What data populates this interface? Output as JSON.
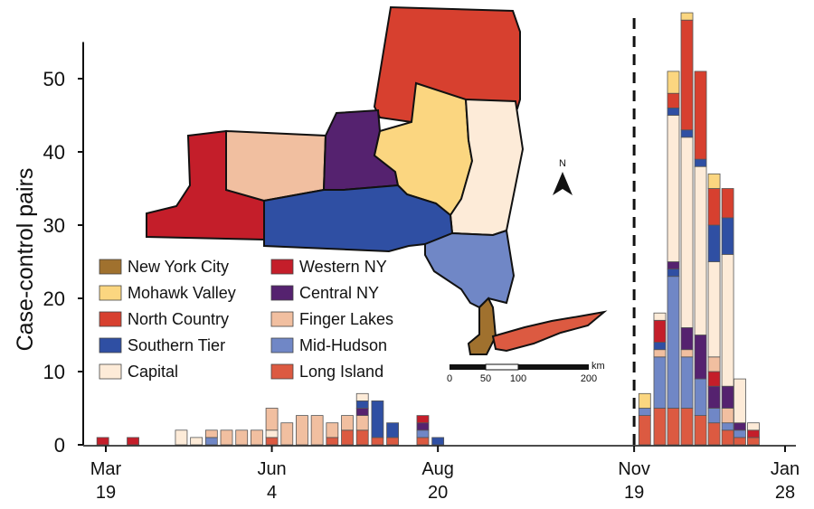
{
  "colors": {
    "new_york_city": "#A0712E",
    "western_ny": "#C41E2A",
    "mohawk_valley": "#FBD680",
    "central_ny": "#55226F",
    "north_country": "#D7402F",
    "finger_lakes": "#F1BFA0",
    "southern_tier": "#2F4FA3",
    "mid_hudson": "#7087C6",
    "capital": "#FDEBD8",
    "long_island": "#DC5A41"
  },
  "chart_data": {
    "type": "bar",
    "stacked": true,
    "ylabel": "Case-control pairs",
    "xlabel": "",
    "ylim": [
      0,
      55
    ],
    "yticks": [
      "0",
      "10",
      "20",
      "30",
      "40",
      "50"
    ],
    "ytick_values": [
      0,
      10,
      20,
      30,
      40,
      50
    ],
    "xtick_labels": [
      {
        "week": 0,
        "line1": "Mar",
        "line2": "19"
      },
      {
        "week": 11,
        "line1": "Jun",
        "line2": "4"
      },
      {
        "week": 22,
        "line1": "Aug",
        "line2": "20"
      },
      {
        "week": 35,
        "line1": "Nov",
        "line2": "19"
      },
      {
        "week": 45,
        "line1": "Jan",
        "line2": "28"
      }
    ],
    "week_range": [
      -0.5,
      45.5
    ],
    "reference_line_week": 35,
    "series_order": [
      "long_island",
      "mid_hudson",
      "capital",
      "finger_lakes",
      "western_ny",
      "central_ny",
      "southern_tier",
      "north_country",
      "mohawk_valley",
      "new_york_city"
    ],
    "bars": [
      {
        "week": -0.2,
        "values": {
          "western_ny": 1
        }
      },
      {
        "week": 1.8,
        "values": {
          "western_ny": 1
        }
      },
      {
        "week": 5,
        "values": {
          "capital": 2
        }
      },
      {
        "week": 6,
        "values": {
          "capital": 1
        }
      },
      {
        "week": 7,
        "values": {
          "mid_hudson": 1,
          "finger_lakes": 1
        }
      },
      {
        "week": 8,
        "values": {
          "finger_lakes": 2
        }
      },
      {
        "week": 9,
        "values": {
          "finger_lakes": 2
        }
      },
      {
        "week": 10,
        "values": {
          "finger_lakes": 2
        }
      },
      {
        "week": 11,
        "values": {
          "long_island": 1,
          "capital": 1,
          "finger_lakes": 3
        }
      },
      {
        "week": 12,
        "values": {
          "finger_lakes": 3
        }
      },
      {
        "week": 13,
        "values": {
          "finger_lakes": 4
        }
      },
      {
        "week": 14,
        "values": {
          "finger_lakes": 4
        }
      },
      {
        "week": 15,
        "values": {
          "long_island": 1,
          "finger_lakes": 2
        }
      },
      {
        "week": 16,
        "values": {
          "long_island": 2,
          "finger_lakes": 2
        }
      },
      {
        "week": 17,
        "values": {
          "long_island": 2,
          "finger_lakes": 2,
          "central_ny": 1,
          "southern_tier": 1,
          "capital": 1
        }
      },
      {
        "week": 18,
        "values": {
          "long_island": 1,
          "southern_tier": 5
        }
      },
      {
        "week": 19,
        "values": {
          "long_island": 1,
          "southern_tier": 2
        }
      },
      {
        "week": 21,
        "values": {
          "long_island": 1,
          "mid_hudson": 1,
          "central_ny": 1,
          "western_ny": 1
        }
      },
      {
        "week": 22,
        "values": {
          "southern_tier": 1
        }
      },
      {
        "week": 35.7,
        "values": {
          "long_island": 4,
          "mid_hudson": 1,
          "mohawk_valley": 2
        }
      },
      {
        "week": 36.7,
        "values": {
          "long_island": 5,
          "mid_hudson": 7,
          "finger_lakes": 1,
          "southern_tier": 1,
          "western_ny": 3,
          "capital": 1
        }
      },
      {
        "week": 37.6,
        "values": {
          "long_island": 5,
          "mid_hudson": 18,
          "southern_tier": 1,
          "central_ny": 1,
          "capital": 20,
          "southern_tier_2": 1,
          "north_country": 2,
          "mohawk_valley": 3
        }
      },
      {
        "week": 38.5,
        "values": {
          "long_island": 5,
          "mid_hudson": 7,
          "finger_lakes": 1,
          "central_ny": 3,
          "capital": 26,
          "southern_tier": 1,
          "north_country": 15,
          "mohawk_valley": 1
        }
      },
      {
        "week": 39.4,
        "values": {
          "long_island": 4,
          "mid_hudson": 5,
          "central_ny": 6,
          "capital": 23,
          "southern_tier": 1,
          "north_country": 12
        }
      },
      {
        "week": 40.3,
        "values": {
          "long_island": 3,
          "mid_hudson": 2,
          "central_ny": 3,
          "western_ny": 2,
          "finger_lakes": 2,
          "capital": 13,
          "southern_tier": 5,
          "north_country": 5,
          "mohawk_valley": 2
        }
      },
      {
        "week": 41.2,
        "values": {
          "long_island": 2,
          "mid_hudson": 1,
          "finger_lakes": 2,
          "central_ny": 3,
          "capital": 18,
          "southern_tier": 5,
          "north_country": 4
        }
      },
      {
        "week": 42,
        "values": {
          "long_island": 1,
          "mid_hudson": 1,
          "central_ny": 1,
          "capital": 6
        }
      },
      {
        "week": 42.9,
        "values": {
          "long_island": 1,
          "western_ny": 1,
          "capital": 1
        }
      }
    ],
    "legend": [
      {
        "key": "new_york_city",
        "label": "New York City"
      },
      {
        "key": "western_ny",
        "label": "Western NY"
      },
      {
        "key": "mohawk_valley",
        "label": "Mohawk Valley"
      },
      {
        "key": "central_ny",
        "label": "Central NY"
      },
      {
        "key": "north_country",
        "label": "North Country"
      },
      {
        "key": "finger_lakes",
        "label": "Finger Lakes"
      },
      {
        "key": "southern_tier",
        "label": "Southern Tier"
      },
      {
        "key": "mid_hudson",
        "label": "Mid-Hudson"
      },
      {
        "key": "capital",
        "label": "Capital"
      },
      {
        "key": "long_island",
        "label": "Long Island"
      }
    ],
    "legend_placement": "middle-left"
  },
  "map": {
    "north_label": "N",
    "scale_labels": [
      "0",
      "50",
      "100",
      "200"
    ],
    "scale_unit": "km"
  }
}
